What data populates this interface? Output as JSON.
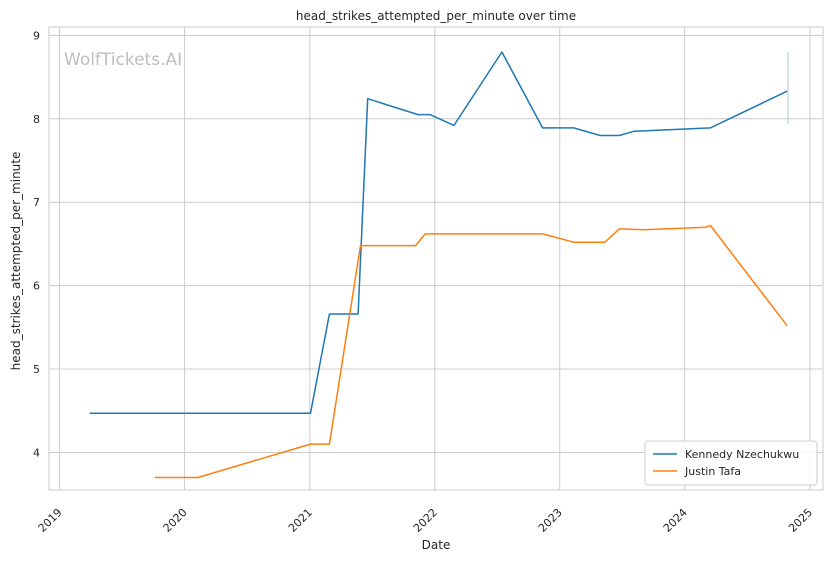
{
  "chart_data": {
    "type": "line",
    "title": "head_strikes_attempted_per_minute over time",
    "xlabel": "Date",
    "ylabel": "head_strikes_attempted_per_minute",
    "watermark": "WolfTickets.AI",
    "x_ticks": [
      "2019",
      "2020",
      "2021",
      "2022",
      "2023",
      "2024",
      "2025"
    ],
    "y_ticks": [
      4,
      5,
      6,
      7,
      8,
      9
    ],
    "xlim": [
      "2018-12-01",
      "2025-02-08"
    ],
    "ylim": [
      3.55,
      9.1
    ],
    "grid": true,
    "legend_position": "bottom-right",
    "colors": {
      "kennedy": "#1f77b4",
      "tafa": "#ff7f0e",
      "grid": "#cccccc"
    },
    "series": [
      {
        "name": "Kennedy Nzechukwu",
        "color": "#1f77b4",
        "x": [
          "2019-03-30",
          "2021-01-03",
          "2021-02-27",
          "2021-05-22",
          "2021-06-19",
          "2021-11-13",
          "2021-12-18",
          "2022-02-26",
          "2022-07-16",
          "2022-11-12",
          "2023-02-11",
          "2023-04-29",
          "2023-06-24",
          "2023-08-05",
          "2024-03-16",
          "2024-10-26"
        ],
        "values": [
          4.47,
          4.47,
          5.66,
          5.66,
          8.24,
          8.05,
          8.05,
          7.92,
          8.8,
          7.89,
          7.89,
          7.8,
          7.8,
          7.85,
          7.89,
          8.33
        ]
      },
      {
        "name": "Justin Tafa",
        "color": "#ff7f0e",
        "x": [
          "2019-10-06",
          "2020-02-09",
          "2021-01-03",
          "2021-02-27",
          "2021-05-29",
          "2021-11-06",
          "2021-12-04",
          "2022-11-12",
          "2023-02-11",
          "2023-05-13",
          "2023-06-24",
          "2023-09-02",
          "2024-03-02",
          "2024-03-16",
          "2024-10-26"
        ],
        "values": [
          3.7,
          3.7,
          4.1,
          4.1,
          6.48,
          6.48,
          6.62,
          6.62,
          6.52,
          6.52,
          6.68,
          6.67,
          6.7,
          6.72,
          5.52
        ]
      }
    ]
  }
}
